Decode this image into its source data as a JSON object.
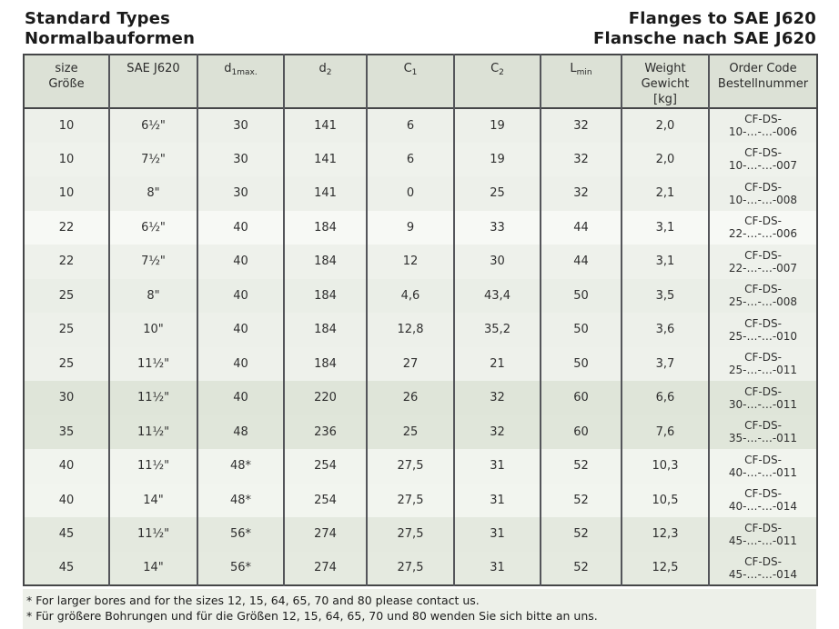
{
  "header": {
    "left_line1": "Standard Types",
    "left_line2": "Normalbauformen",
    "right_line1": "Flanges to SAE J620",
    "right_line2": "Flansche nach SAE J620"
  },
  "table": {
    "columns": [
      {
        "label_lines": [
          "size",
          "Größe"
        ]
      },
      {
        "label_lines": [
          "SAE J620"
        ]
      },
      {
        "symbol": {
          "base": "d",
          "sub": "1max."
        }
      },
      {
        "symbol": {
          "base": "d",
          "sub": "2"
        }
      },
      {
        "symbol": {
          "base": "C",
          "sub": "1"
        }
      },
      {
        "symbol": {
          "base": "C",
          "sub": "2"
        }
      },
      {
        "symbol": {
          "base": "L",
          "sub": "min"
        }
      },
      {
        "label_lines": [
          "Weight",
          "Gewicht",
          "[kg]"
        ]
      },
      {
        "label_lines": [
          "Order Code",
          "Bestellnummer"
        ]
      }
    ],
    "rows": [
      {
        "shade": "#edf0ea",
        "cells": [
          "10",
          "6½\"",
          "30",
          "141",
          "6",
          "19",
          "32",
          "2,0",
          "CF-DS-10-…-…-006"
        ]
      },
      {
        "shade": "#eff2ec",
        "cells": [
          "10",
          "7½\"",
          "30",
          "141",
          "6",
          "19",
          "32",
          "2,0",
          "CF-DS-10-…-…-007"
        ]
      },
      {
        "shade": "#edf0ea",
        "cells": [
          "10",
          "8\"",
          "30",
          "141",
          "0",
          "25",
          "32",
          "2,1",
          "CF-DS-10-…-…-008"
        ]
      },
      {
        "shade": "#f7f9f5",
        "cells": [
          "22",
          "6½\"",
          "40",
          "184",
          "9",
          "33",
          "44",
          "3,1",
          "CF-DS-22-…-…-006"
        ]
      },
      {
        "shade": "#eef1eb",
        "cells": [
          "22",
          "7½\"",
          "40",
          "184",
          "12",
          "30",
          "44",
          "3,1",
          "CF-DS-22-…-…-007"
        ]
      },
      {
        "shade": "#eaeee7",
        "cells": [
          "25",
          "8\"",
          "40",
          "184",
          "4,6",
          "43,4",
          "50",
          "3,5",
          "CF-DS-25-…-…-008"
        ]
      },
      {
        "shade": "#edf0ea",
        "cells": [
          "25",
          "10\"",
          "40",
          "184",
          "12,8",
          "35,2",
          "50",
          "3,6",
          "CF-DS-25-…-…-010"
        ]
      },
      {
        "shade": "#eef1eb",
        "cells": [
          "25",
          "11½\"",
          "40",
          "184",
          "27",
          "21",
          "50",
          "3,7",
          "CF-DS-25-…-…-011"
        ]
      },
      {
        "shade": "#dfe5d9",
        "cells": [
          "30",
          "11½\"",
          "40",
          "220",
          "26",
          "32",
          "60",
          "6,6",
          "CF-DS-30-…-…-011"
        ]
      },
      {
        "shade": "#e0e6da",
        "cells": [
          "35",
          "11½\"",
          "48",
          "236",
          "25",
          "32",
          "60",
          "7,6",
          "CF-DS-35-…-…-011"
        ]
      },
      {
        "shade": "#f1f4ee",
        "cells": [
          "40",
          "11½\"",
          "48*",
          "254",
          "27,5",
          "31",
          "52",
          "10,3",
          "CF-DS-40-…-…-011"
        ]
      },
      {
        "shade": "#f2f5ef",
        "cells": [
          "40",
          "14\"",
          "48*",
          "254",
          "27,5",
          "31",
          "52",
          "10,5",
          "CF-DS-40-…-…-014"
        ]
      },
      {
        "shade": "#e4e9df",
        "cells": [
          "45",
          "11½\"",
          "56*",
          "274",
          "27,5",
          "31",
          "52",
          "12,3",
          "CF-DS-45-…-…-011"
        ]
      },
      {
        "shade": "#e5eae0",
        "cells": [
          "45",
          "14\"",
          "56*",
          "274",
          "27,5",
          "31",
          "52",
          "12,5",
          "CF-DS-45-…-…-014"
        ]
      }
    ]
  },
  "footnotes": [
    "* For larger bores and for the sizes 12, 15, 64, 65, 70 and 80 please contact us.",
    "* Für größere Bohrungen und für die Größen 12, 15, 64, 65, 70 und 80 wenden Sie sich bitte an uns."
  ],
  "colors": {
    "header_cell_bg": "#dce1d6",
    "table_border": "#454648",
    "column_border": "#54555a",
    "notes_bg": "#edf0e9",
    "text": "#2f2f2f"
  }
}
